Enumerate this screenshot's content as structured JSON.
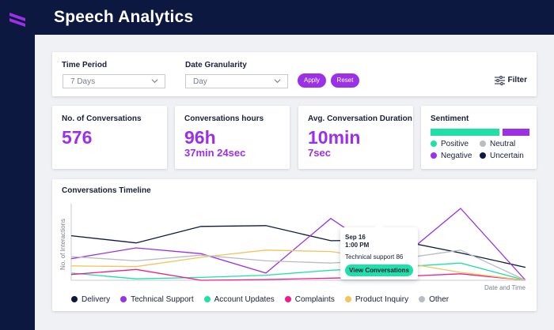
{
  "app": {
    "title": "Speech Analytics",
    "logo_icon": "brand-s-icon"
  },
  "colors": {
    "navy": "#0d1840",
    "purple": "#9b30e6",
    "green": "#1fe0a7",
    "pink": "#ee1c8c",
    "yellow": "#f2c45a",
    "gray": "#b9bcc6"
  },
  "filters": {
    "time_period_label": "Time Period",
    "time_period_value": "7 Days",
    "granularity_label": "Date Granularity",
    "granularity_value": "Day",
    "apply_label": "Apply",
    "reset_label": "Reset",
    "filter_label": "Filter"
  },
  "stats": {
    "conversations": {
      "title": "No. of Conversations",
      "value": "576"
    },
    "hours": {
      "title": "Conversations hours",
      "value": "96h",
      "sub": "37min 24sec"
    },
    "duration": {
      "title": "Avg. Conversation Duration",
      "value": "10min",
      "sub": "7sec"
    }
  },
  "sentiment": {
    "title": "Sentiment",
    "positive_share": 0.72,
    "legend": [
      "Positive",
      "Neutral",
      "Negative",
      "Uncertain"
    ]
  },
  "timeline": {
    "title": "Conversations Timeline",
    "tooltip": {
      "date": "Sep 16",
      "time": "1:00 PM",
      "value_text": "Technical support 86",
      "button_label": "View Conversations"
    },
    "chart_data": {
      "type": "line",
      "xlabel": "Date and Time",
      "ylabel": "No. of Interactions",
      "x": [
        0,
        1,
        2,
        3,
        4,
        5,
        6,
        7
      ],
      "ylim": [
        0,
        100
      ],
      "series": [
        {
          "name": "Delivery",
          "color": "#0d1840",
          "values": [
            62,
            52,
            75,
            76,
            55,
            56,
            38,
            18
          ]
        },
        {
          "name": "Technical Support",
          "color": "#9b30e6",
          "values": [
            30,
            45,
            37,
            10,
            86,
            25,
            100,
            0
          ]
        },
        {
          "name": "Account Updates",
          "color": "#1fe0a7",
          "values": [
            10,
            2,
            4,
            7,
            14,
            18,
            24,
            0
          ]
        },
        {
          "name": "Complaints",
          "color": "#ee1c8c",
          "values": [
            8,
            15,
            0,
            1,
            3,
            5,
            9,
            0
          ]
        },
        {
          "name": "Product Inquiry",
          "color": "#f2c45a",
          "values": [
            20,
            19,
            32,
            42,
            40,
            26,
            11,
            0
          ]
        },
        {
          "name": "Other",
          "color": "#b9bcc6",
          "values": [
            33,
            27,
            35,
            27,
            24,
            29,
            42,
            0
          ]
        }
      ]
    }
  }
}
